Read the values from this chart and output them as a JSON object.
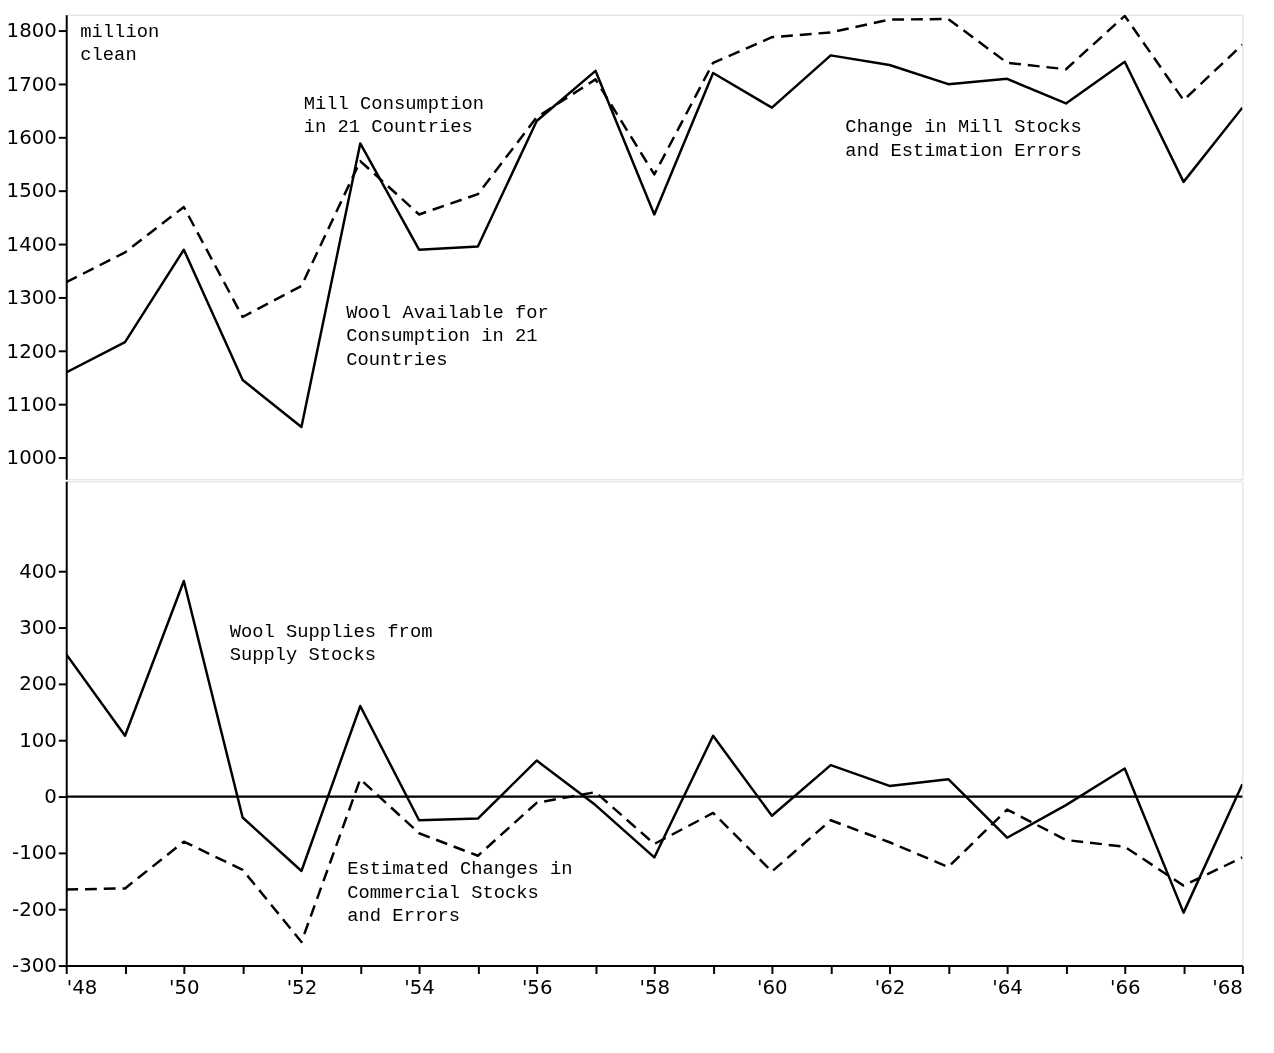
{
  "chart_data": [
    {
      "type": "line",
      "x": [
        1948,
        1949,
        1950,
        1951,
        1952,
        1953,
        1954,
        1955,
        1956,
        1957,
        1958,
        1959,
        1960,
        1961,
        1962,
        1963,
        1964,
        1965,
        1966,
        1967,
        1968
      ],
      "series": [
        {
          "name": "Wool Available for Consumption in 21 Countries",
          "color": "#000000",
          "line_style": "solid",
          "values": [
            1160,
            1217,
            1390,
            1146,
            1058,
            1589,
            1390,
            1396,
            1631,
            1725,
            1456,
            1721,
            1656,
            1754,
            1736,
            1700,
            1710,
            1664,
            1742,
            1517,
            1656
          ]
        },
        {
          "name": "Mill Consumption in 21 Countries",
          "color": "#000000",
          "line_style": "dashed",
          "values": [
            1329,
            1385,
            1470,
            1264,
            1322,
            1556,
            1456,
            1494,
            1638,
            1709,
            1531,
            1740,
            1788,
            1797,
            1821,
            1822,
            1740,
            1728,
            1828,
            1670,
            1774
          ]
        }
      ],
      "xlim": [
        1948,
        1968
      ],
      "ylim": [
        960,
        1830
      ],
      "yticks": [
        1000,
        1100,
        1200,
        1300,
        1400,
        1500,
        1600,
        1700,
        1800
      ],
      "tick_labels": "y",
      "annotations": [
        "million clean",
        "Change in Mill Stocks and Estimation Errors"
      ]
    },
    {
      "type": "line",
      "x": [
        1948,
        1949,
        1950,
        1951,
        1952,
        1953,
        1954,
        1955,
        1956,
        1957,
        1958,
        1959,
        1960,
        1961,
        1962,
        1963,
        1964,
        1965,
        1966,
        1967,
        1968
      ],
      "series": [
        {
          "name": "Wool Supplies from Supply Stocks",
          "color": "#000000",
          "line_style": "solid",
          "values": [
            253,
            108,
            383,
            -37,
            -132,
            161,
            -42,
            -39,
            64,
            -15,
            -108,
            108,
            -34,
            56,
            19,
            31,
            -73,
            -15,
            50,
            -206,
            22
          ]
        },
        {
          "name": "Estimated Changes in Commercial Stocks and Errors",
          "color": "#000000",
          "line_style": "dashed",
          "values": [
            -165,
            -163,
            -80,
            -130,
            -258,
            31,
            -65,
            -105,
            -11,
            8,
            -84,
            -29,
            -133,
            -42,
            -81,
            -125,
            -23,
            -77,
            -89,
            -158,
            -108
          ]
        }
      ],
      "xlim": [
        1948,
        1968
      ],
      "ylim": [
        -300,
        560
      ],
      "xticks": [
        {
          "value": 1948,
          "label": "'48"
        },
        {
          "value": 1949,
          "label": null
        },
        {
          "value": 1950,
          "label": "'50"
        },
        {
          "value": 1951,
          "label": null
        },
        {
          "value": 1952,
          "label": "'52"
        },
        {
          "value": 1953,
          "label": null
        },
        {
          "value": 1954,
          "label": "'54"
        },
        {
          "value": 1955,
          "label": null
        },
        {
          "value": 1956,
          "label": "'56"
        },
        {
          "value": 1957,
          "label": null
        },
        {
          "value": 1958,
          "label": "'58"
        },
        {
          "value": 1959,
          "label": null
        },
        {
          "value": 1960,
          "label": "'60"
        },
        {
          "value": 1961,
          "label": null
        },
        {
          "value": 1962,
          "label": "'62"
        },
        {
          "value": 1963,
          "label": null
        },
        {
          "value": 1964,
          "label": "'64"
        },
        {
          "value": 1965,
          "label": null
        },
        {
          "value": 1966,
          "label": "'66"
        },
        {
          "value": 1967,
          "label": null
        },
        {
          "value": 1968,
          "label": "'68"
        }
      ],
      "yticks": [
        -300,
        -200,
        -100,
        0,
        100,
        200,
        300,
        400
      ],
      "ref_lines": [
        {
          "axis": "y",
          "value": 0,
          "color": "#000000",
          "line_style": "solid"
        }
      ]
    }
  ]
}
